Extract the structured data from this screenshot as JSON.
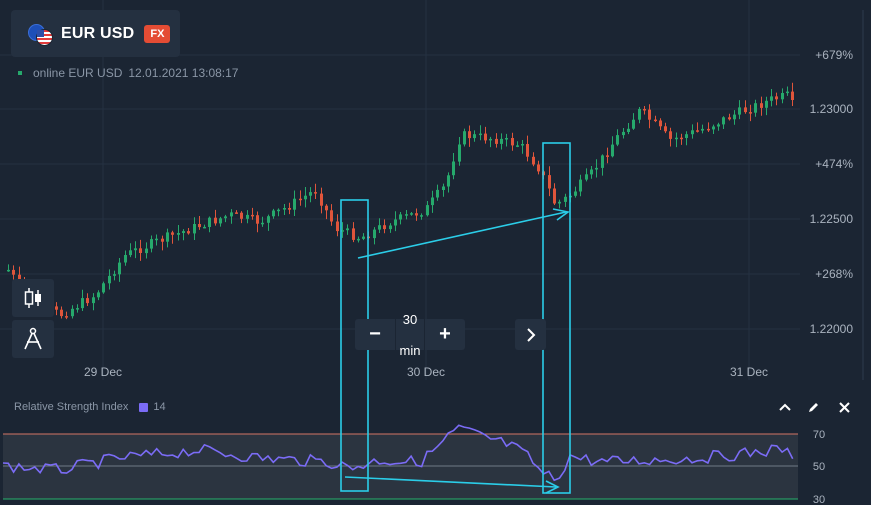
{
  "asset": {
    "pair": "EUR USD",
    "badge": "FX",
    "flag_icon": "eur-usd-flag-icon"
  },
  "status": {
    "label": "online EUR USD",
    "timestamp": "12.01.2021 13:08:17"
  },
  "tools": [
    {
      "icon": "candlestick-icon"
    },
    {
      "icon": "drawing-compass-icon"
    }
  ],
  "zoom": {
    "minus": "−",
    "timeframe": "30 min",
    "plus": "+",
    "next_icon": "chevron-right-icon"
  },
  "y_axis_labels": [
    "+679%",
    "1.23000",
    "+474%",
    "1.22500",
    "+268%",
    "1.22000"
  ],
  "x_axis_labels": [
    "29 Dec",
    "30 Dec",
    "31 Dec"
  ],
  "rsi": {
    "title": "Relative Strength Index",
    "period": "14",
    "levels": [
      "70",
      "50",
      "30"
    ],
    "line_color": "#7b6cf6",
    "icons": [
      "chevron-up-icon",
      "pencil-icon",
      "close-icon"
    ]
  },
  "colors": {
    "bull": "#26a96c",
    "bear": "#e0553b",
    "background": "#1b2533",
    "annotation": "#2bcde8"
  }
}
